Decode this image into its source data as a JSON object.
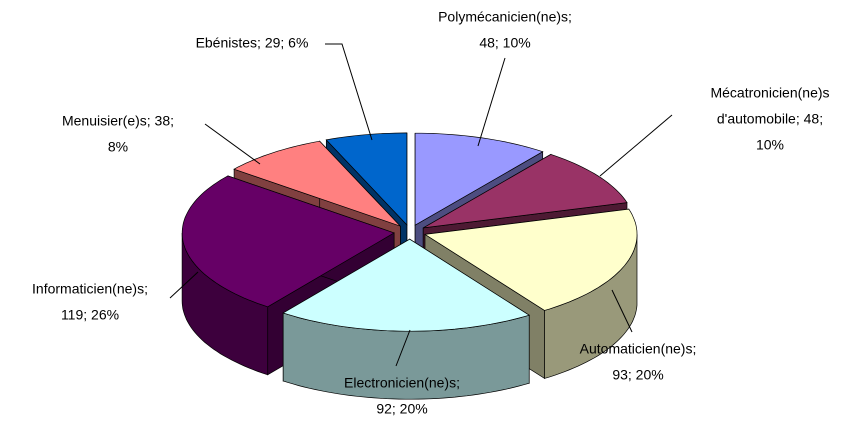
{
  "chart_data": {
    "type": "pie3d",
    "labels": [
      [
        "Polymécanicien(ne)s;",
        "48; 10%"
      ],
      [
        "Mécatronicien(ne)s",
        "d'automobile; 48;",
        "10%"
      ],
      [
        "Automaticien(ne)s;",
        "93; 20%"
      ],
      [
        "Electronicien(ne)s;",
        "92; 20%"
      ],
      [
        "Informaticien(ne)s;",
        "119; 26%"
      ],
      [
        "Menuisier(e)s; 38;",
        "8%"
      ],
      [
        "Ebénistes; 29; 6%"
      ]
    ],
    "values": [
      48,
      48,
      93,
      92,
      119,
      38,
      29
    ],
    "colors": [
      "#9999ff",
      "#993366",
      "#ffffcc",
      "#ccffff",
      "#660066",
      "#ff8080",
      "#0066cc"
    ]
  }
}
